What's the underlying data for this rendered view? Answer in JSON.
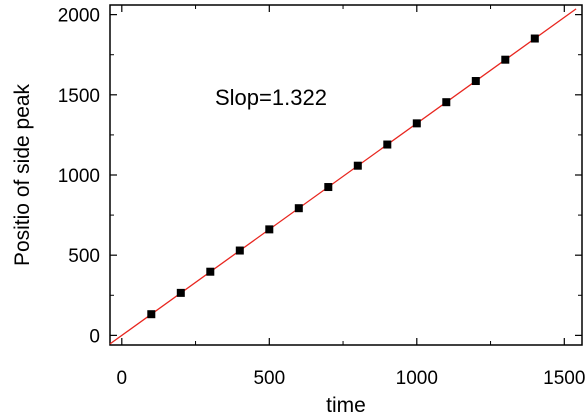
{
  "chart_data": {
    "type": "scatter",
    "xlabel": "time",
    "ylabel": "Positio of side peak",
    "xlim": [
      -40,
      1560
    ],
    "ylim": [
      -60,
      2060
    ],
    "x_ticks": [
      0,
      500,
      1000,
      1500
    ],
    "y_ticks": [
      0,
      500,
      1000,
      1500,
      2000
    ],
    "annotation": "Slop=1.322",
    "grid": false,
    "series": [
      {
        "marker": "square",
        "color": "#000000",
        "points": [
          {
            "x": 100,
            "y": 132
          },
          {
            "x": 200,
            "y": 265
          },
          {
            "x": 300,
            "y": 397
          },
          {
            "x": 400,
            "y": 529
          },
          {
            "x": 500,
            "y": 661
          },
          {
            "x": 600,
            "y": 793
          },
          {
            "x": 700,
            "y": 925
          },
          {
            "x": 800,
            "y": 1058
          },
          {
            "x": 900,
            "y": 1190
          },
          {
            "x": 1000,
            "y": 1322
          },
          {
            "x": 1100,
            "y": 1454
          },
          {
            "x": 1200,
            "y": 1586
          },
          {
            "x": 1300,
            "y": 1719
          },
          {
            "x": 1400,
            "y": 1851
          }
        ]
      }
    ],
    "fit_line": {
      "color": "#e8261f",
      "slope": 1.322,
      "intercept": 0,
      "x_range": [
        -40,
        1540
      ]
    }
  }
}
